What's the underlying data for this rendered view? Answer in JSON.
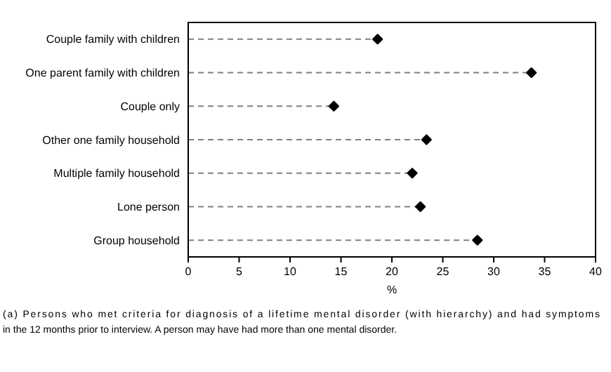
{
  "chart_data": {
    "type": "lollipop",
    "orientation": "horizontal",
    "categories": [
      "Couple family with children",
      "One parent family with children",
      "Couple only",
      "Other one family household",
      "Multiple family household",
      "Lone person",
      "Group household"
    ],
    "values": [
      18.6,
      33.7,
      14.3,
      23.4,
      22.0,
      22.8,
      28.4
    ],
    "color": "#000000",
    "marker": "diamond",
    "line_style": "dashed",
    "xlim": [
      0,
      40
    ],
    "xticks": [
      0,
      5,
      10,
      15,
      20,
      25,
      30,
      35,
      40
    ],
    "xlabel": "%",
    "grid": false,
    "annotations": [
      "(a) Persons who met criteria for diagnosis of a lifetime mental disorder (with hierarchy) and had symptoms in the 12 months prior to interview. A person may have had more than one mental disorder."
    ]
  }
}
